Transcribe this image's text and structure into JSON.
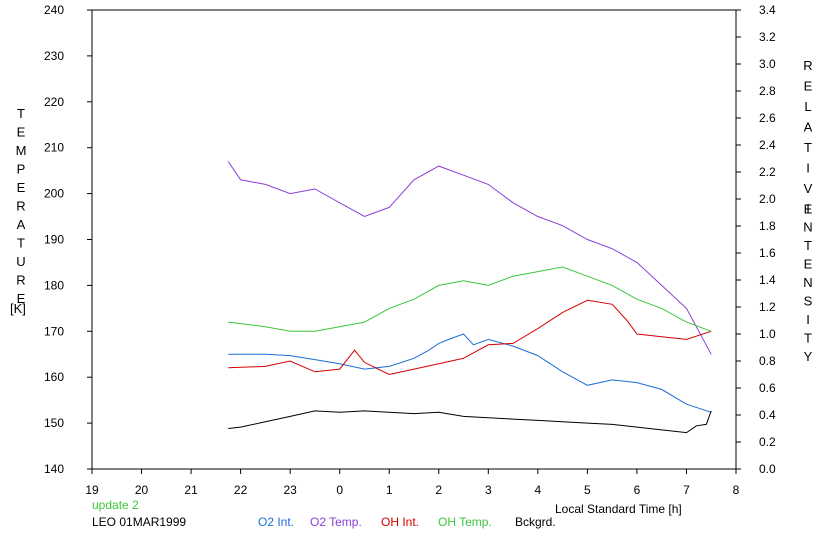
{
  "chart_data": {
    "type": "line",
    "xlabel": "Local Standard Time [h]",
    "ylabel_left": "TEMPERATURE",
    "ylabel_left_unit": "[K]",
    "ylabel_right": "RELATIVE INTENSITY",
    "x_ticks": [
      "19",
      "20",
      "21",
      "22",
      "23",
      "0",
      "1",
      "2",
      "3",
      "4",
      "5",
      "6",
      "7",
      "8"
    ],
    "xlim": [
      19,
      32
    ],
    "ylim_left": [
      140,
      240
    ],
    "y_left_ticks": [
      140,
      150,
      160,
      170,
      180,
      190,
      200,
      210,
      220,
      230,
      240
    ],
    "ylim_right": [
      0.0,
      3.4
    ],
    "y_right_ticks": [
      "0.0",
      "0.2",
      "0.4",
      "0.6",
      "0.8",
      "1.0",
      "1.2",
      "1.4",
      "1.6",
      "1.8",
      "2.0",
      "2.2",
      "2.4",
      "2.6",
      "2.8",
      "3.0",
      "3.2",
      "3.4"
    ],
    "grid": false,
    "series": [
      {
        "name": "O2 Int.",
        "color": "#1a6fd6",
        "axis": "right",
        "x": [
          21.75,
          22.5,
          23.0,
          23.5,
          24.0,
          24.5,
          25.0,
          25.5,
          25.8,
          26.0,
          26.2,
          26.5,
          26.7,
          27.0,
          27.5,
          28.0,
          28.5,
          29.0,
          29.5,
          30.0,
          30.5,
          31.0,
          31.5
        ],
        "y": [
          0.85,
          0.85,
          0.84,
          0.81,
          0.78,
          0.74,
          0.76,
          0.82,
          0.88,
          0.93,
          0.96,
          1.0,
          0.92,
          0.96,
          0.91,
          0.84,
          0.72,
          0.62,
          0.66,
          0.64,
          0.59,
          0.48,
          0.42
        ]
      },
      {
        "name": "O2 Temp.",
        "color": "#8a3fd6",
        "axis": "left",
        "x": [
          21.75,
          22.0,
          22.5,
          23.0,
          23.5,
          24.0,
          24.5,
          25.0,
          25.5,
          26.0,
          26.5,
          27.0,
          27.5,
          28.0,
          28.5,
          29.0,
          29.5,
          30.0,
          30.5,
          31.0,
          31.5
        ],
        "y": [
          207,
          203,
          202,
          200,
          201,
          198,
          195,
          197,
          203,
          206,
          204,
          202,
          198,
          195,
          193,
          190,
          188,
          185,
          180,
          175,
          165
        ]
      },
      {
        "name": "OH Int.",
        "color": "#d60000",
        "axis": "right",
        "x": [
          21.75,
          22.5,
          23.0,
          23.5,
          24.0,
          24.3,
          24.5,
          25.0,
          25.5,
          26.0,
          26.5,
          27.0,
          27.5,
          28.0,
          28.5,
          29.0,
          29.5,
          29.8,
          30.0,
          30.5,
          31.0,
          31.5
        ],
        "y": [
          0.75,
          0.76,
          0.8,
          0.72,
          0.74,
          0.88,
          0.79,
          0.7,
          0.74,
          0.78,
          0.82,
          0.92,
          0.93,
          1.04,
          1.16,
          1.25,
          1.22,
          1.1,
          1.0,
          0.98,
          0.96,
          1.02
        ]
      },
      {
        "name": "OH Temp.",
        "color": "#3cc63c",
        "axis": "left",
        "x": [
          21.75,
          22.5,
          23.0,
          23.5,
          24.0,
          24.5,
          25.0,
          25.5,
          26.0,
          26.5,
          27.0,
          27.5,
          28.0,
          28.5,
          29.0,
          29.5,
          30.0,
          30.5,
          31.0,
          31.5
        ],
        "y": [
          172,
          171,
          170,
          170,
          171,
          172,
          175,
          177,
          180,
          181,
          180,
          182,
          183,
          184,
          182,
          180,
          177,
          175,
          172,
          170
        ]
      },
      {
        "name": "Bckgrd.",
        "color": "#000000",
        "axis": "right",
        "x": [
          21.75,
          22.0,
          22.5,
          23.0,
          23.5,
          24.0,
          24.5,
          25.0,
          25.5,
          26.0,
          26.5,
          27.0,
          27.5,
          28.0,
          28.5,
          29.0,
          29.5,
          30.0,
          30.5,
          31.0,
          31.2,
          31.4,
          31.5
        ],
        "y": [
          0.3,
          0.31,
          0.35,
          0.39,
          0.43,
          0.42,
          0.43,
          0.42,
          0.41,
          0.42,
          0.39,
          0.38,
          0.37,
          0.36,
          0.35,
          0.34,
          0.33,
          0.31,
          0.29,
          0.27,
          0.32,
          0.33,
          0.43
        ]
      }
    ]
  },
  "footer": {
    "update": "update 2",
    "station": "LEO 01MAR1999",
    "colors": {
      "update": "#3cc63c"
    }
  }
}
